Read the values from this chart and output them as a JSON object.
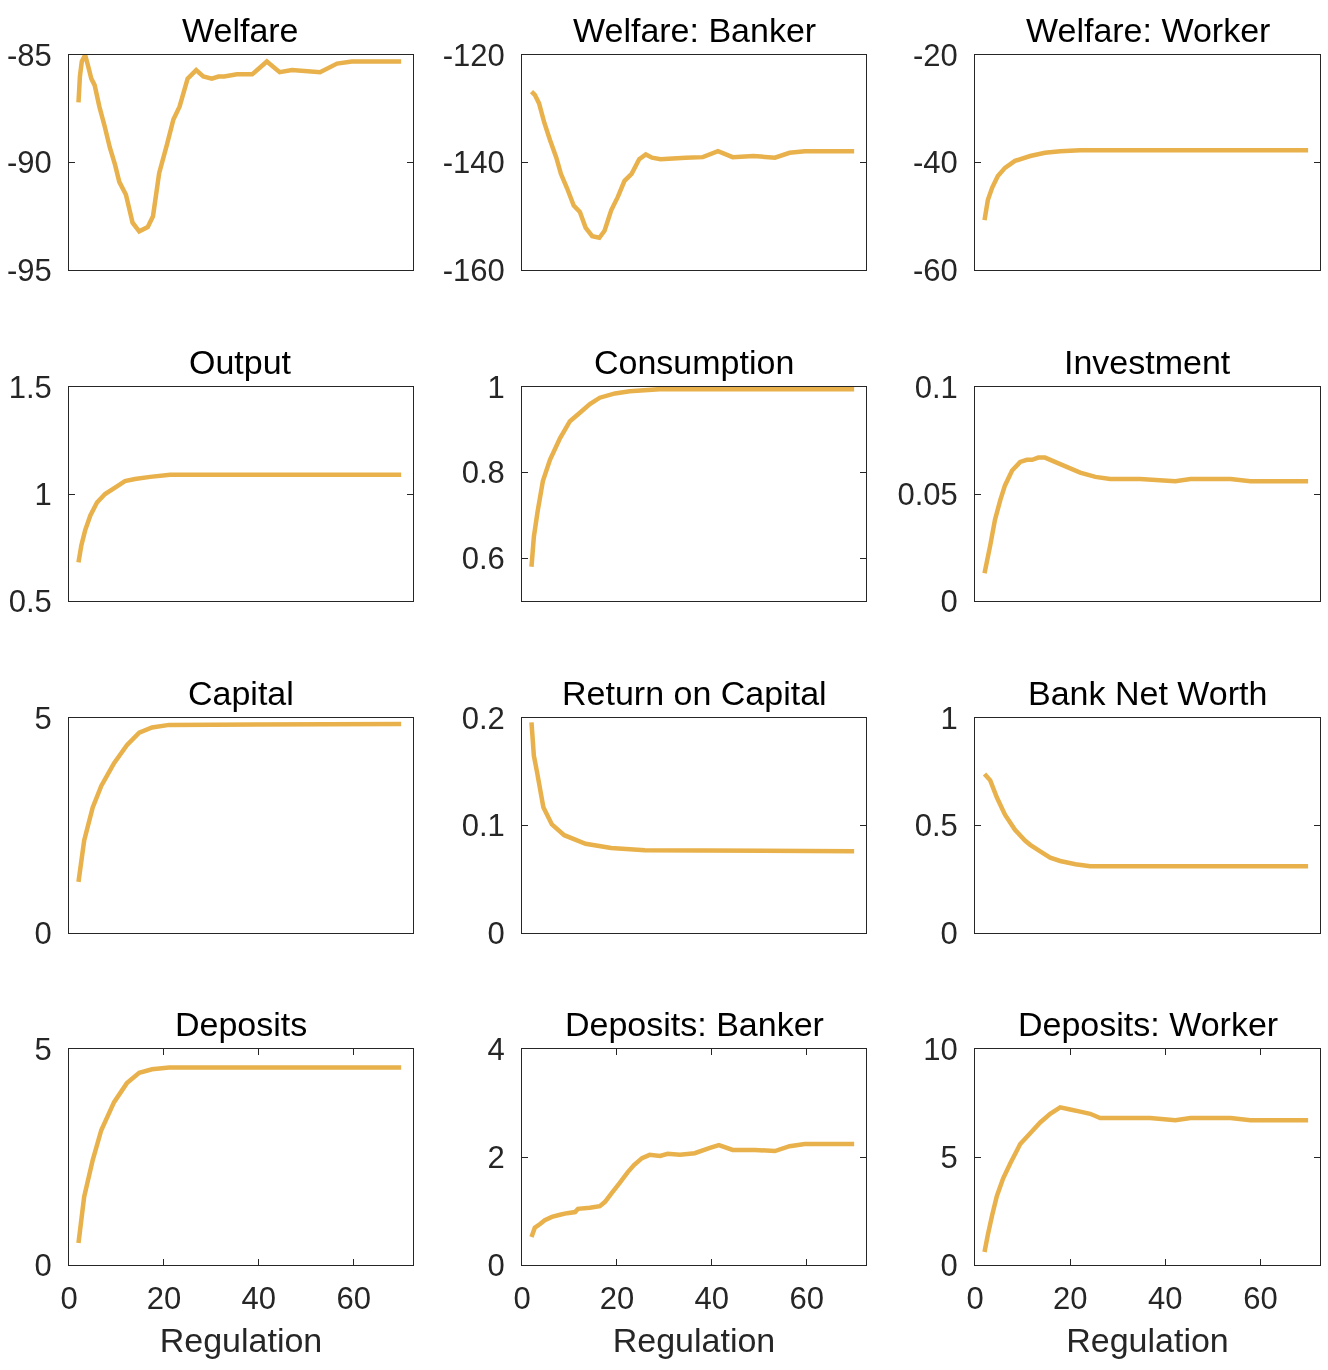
{
  "chart_data": [
    {
      "type": "line",
      "title": "Welfare",
      "x": [
        2,
        2.3,
        2.7,
        3.4,
        3.9,
        4.7,
        5.4,
        6.4,
        7.5,
        8.6,
        9.7,
        10.6,
        12,
        13.4,
        14.8,
        16.6,
        17.7,
        19,
        20.6,
        22,
        23.3,
        25,
        26.8,
        28.3,
        30.1,
        31.5,
        32.7,
        35.4,
        38.6,
        41.7,
        44.4,
        47,
        52.9,
        56.5,
        59.6,
        70
      ],
      "values": [
        -87.2,
        -86.0,
        -85.3,
        -85.0,
        -85.4,
        -86.1,
        -86.4,
        -87.4,
        -88.3,
        -89.3,
        -90.1,
        -90.9,
        -91.5,
        -92.8,
        -93.2,
        -93.0,
        -92.5,
        -90.5,
        -89.2,
        -88.0,
        -87.4,
        -86.1,
        -85.7,
        -86.0,
        -86.1,
        -86.0,
        -86.0,
        -85.9,
        -85.9,
        -85.3,
        -85.8,
        -85.7,
        -85.8,
        -85.4,
        -85.3,
        -85.3
      ],
      "color": "#e8b14b",
      "xlim": [
        0,
        72.5
      ],
      "ylim": [
        -95,
        -85
      ],
      "yticks": [
        -95,
        -90,
        -85
      ],
      "tick_labels": "y"
    },
    {
      "type": "line",
      "title": "Welfare: Banker",
      "x": [
        2,
        2.7,
        3.6,
        4.7,
        5.9,
        7.2,
        8.2,
        9.5,
        10.9,
        12.2,
        13.4,
        14.8,
        16.3,
        17.4,
        18.8,
        20.2,
        21.6,
        23.1,
        24.7,
        26.1,
        27.4,
        29.2,
        30.9,
        34.5,
        38.1,
        41.3,
        44.4,
        48.8,
        53.3,
        56.4,
        59.6,
        70
      ],
      "values": [
        -126.8,
        -127.4,
        -129.0,
        -132.6,
        -135.8,
        -139.0,
        -142.1,
        -144.8,
        -148.0,
        -149.2,
        -152.1,
        -153.7,
        -154.0,
        -152.7,
        -148.9,
        -146.4,
        -143.4,
        -142.1,
        -139.4,
        -138.5,
        -139.1,
        -139.4,
        -139.3,
        -139.1,
        -139.0,
        -137.9,
        -139.0,
        -138.8,
        -139.1,
        -138.2,
        -137.9,
        -137.9
      ],
      "color": "#e8b14b",
      "xlim": [
        0,
        72.5
      ],
      "ylim": [
        -160,
        -120
      ],
      "yticks": [
        -160,
        -140,
        -120
      ],
      "tick_labels": "y"
    },
    {
      "type": "line",
      "title": "Welfare: Worker",
      "x": [
        2,
        2.7,
        3.6,
        4.8,
        6.3,
        8.4,
        11.6,
        14.7,
        17.9,
        22.1,
        70
      ],
      "values": [
        -50.7,
        -47.0,
        -44.7,
        -42.5,
        -41.0,
        -39.7,
        -38.8,
        -38.2,
        -37.9,
        -37.7,
        -37.7
      ],
      "color": "#e8b14b",
      "xlim": [
        0,
        72.5
      ],
      "ylim": [
        -60,
        -20
      ],
      "yticks": [
        -60,
        -40,
        -20
      ],
      "tick_labels": "y"
    },
    {
      "type": "line",
      "title": "Output",
      "x": [
        2,
        2.6,
        3.4,
        4.5,
        5.9,
        7.6,
        9.7,
        11.8,
        13.9,
        17.1,
        21.3,
        27.6,
        70
      ],
      "values": [
        0.68,
        0.76,
        0.83,
        0.9,
        0.96,
        1.0,
        1.03,
        1.06,
        1.07,
        1.08,
        1.09,
        1.09,
        1.09
      ],
      "color": "#e8b14b",
      "xlim": [
        0,
        72.5
      ],
      "ylim": [
        0.5,
        1.5
      ],
      "yticks": [
        0.5,
        1,
        1.5
      ],
      "tick_labels": "y"
    },
    {
      "type": "line",
      "title": "Consumption",
      "x": [
        2,
        2.5,
        3.3,
        4.4,
        5.9,
        8,
        10.1,
        12.2,
        14.3,
        16.4,
        19.6,
        22.7,
        29,
        70
      ],
      "values": [
        0.58,
        0.65,
        0.71,
        0.78,
        0.83,
        0.88,
        0.92,
        0.94,
        0.96,
        0.975,
        0.985,
        0.99,
        0.995,
        0.995
      ],
      "color": "#e8b14b",
      "xlim": [
        0,
        72.5
      ],
      "ylim": [
        0.5,
        1
      ],
      "yticks": [
        0.6,
        0.8,
        1
      ],
      "tick_labels": "y"
    },
    {
      "type": "line",
      "title": "Investment",
      "x": [
        2,
        3.2,
        4.2,
        5.3,
        6.3,
        7.8,
        9.5,
        10.9,
        12,
        13.3,
        14.7,
        16.8,
        18.9,
        22.1,
        25.3,
        28.4,
        34.7,
        42.1,
        45.3,
        53.7,
        57.9,
        70
      ],
      "values": [
        0.013,
        0.026,
        0.038,
        0.047,
        0.054,
        0.061,
        0.065,
        0.066,
        0.066,
        0.067,
        0.067,
        0.065,
        0.063,
        0.06,
        0.058,
        0.057,
        0.057,
        0.056,
        0.057,
        0.057,
        0.056,
        0.056
      ],
      "color": "#e8b14b",
      "xlim": [
        0,
        72.5
      ],
      "ylim": [
        0,
        0.1
      ],
      "yticks": [
        0,
        0.05,
        0.1
      ],
      "tick_labels": "y"
    },
    {
      "type": "line",
      "title": "Capital",
      "x": [
        2,
        3.2,
        5,
        6.8,
        9.5,
        12.2,
        14.8,
        17.5,
        21.1,
        70
      ],
      "values": [
        1.19,
        2.15,
        2.92,
        3.42,
        3.95,
        4.37,
        4.66,
        4.78,
        4.84,
        4.86
      ],
      "color": "#e8b14b",
      "xlim": [
        0,
        72.5
      ],
      "ylim": [
        0,
        5
      ],
      "yticks": [
        0,
        5
      ],
      "tick_labels": "y"
    },
    {
      "type": "line",
      "title": "Return on Capital",
      "x": [
        2,
        2.5,
        3.2,
        4.5,
        6.3,
        8.9,
        13.4,
        18.8,
        25.9,
        70
      ],
      "values": [
        0.196,
        0.165,
        0.149,
        0.117,
        0.101,
        0.091,
        0.083,
        0.079,
        0.077,
        0.076
      ],
      "color": "#e8b14b",
      "xlim": [
        0,
        72.5
      ],
      "ylim": [
        0,
        0.2
      ],
      "yticks": [
        0,
        0.1,
        0.2
      ],
      "tick_labels": "y"
    },
    {
      "type": "line",
      "title": "Bank Net Worth",
      "x": [
        2,
        3.2,
        4.6,
        6.3,
        8.4,
        10.5,
        11.6,
        13.7,
        15.8,
        17.9,
        21.1,
        24.2,
        30.5,
        70
      ],
      "values": [
        0.74,
        0.71,
        0.63,
        0.55,
        0.48,
        0.43,
        0.41,
        0.38,
        0.35,
        0.335,
        0.32,
        0.31,
        0.31,
        0.31
      ],
      "color": "#e8b14b",
      "xlim": [
        0,
        72.5
      ],
      "ylim": [
        0,
        1
      ],
      "yticks": [
        0,
        0.5,
        1
      ],
      "tick_labels": "y"
    },
    {
      "type": "line",
      "title": "Deposits",
      "xlabel": "Regulation",
      "x": [
        2,
        3.2,
        5,
        6.8,
        9.5,
        12.2,
        14.8,
        17.5,
        21.1,
        70
      ],
      "values": [
        0.51,
        1.58,
        2.43,
        3.12,
        3.77,
        4.21,
        4.45,
        4.53,
        4.57,
        4.57
      ],
      "color": "#e8b14b",
      "xlim": [
        0,
        72.5
      ],
      "xticks": [
        0,
        20,
        40,
        60
      ],
      "ylim": [
        0,
        5
      ],
      "yticks": [
        0,
        5
      ]
    },
    {
      "type": "line",
      "title": "Deposits: Banker",
      "xlabel": "Regulation",
      "x": [
        2,
        2.7,
        3.8,
        4.8,
        6.3,
        8,
        9.5,
        11.2,
        11.8,
        14.3,
        16.4,
        17.5,
        18.9,
        20.6,
        22.3,
        23.6,
        25.3,
        26.9,
        29.1,
        30.7,
        33.3,
        36.4,
        39.6,
        41.5,
        44.4,
        49.1,
        53.3,
        56.4,
        59.6,
        70
      ],
      "values": [
        0.52,
        0.69,
        0.76,
        0.83,
        0.89,
        0.93,
        0.96,
        0.98,
        1.04,
        1.06,
        1.09,
        1.17,
        1.33,
        1.52,
        1.72,
        1.85,
        1.98,
        2.04,
        2.02,
        2.06,
        2.04,
        2.07,
        2.17,
        2.22,
        2.13,
        2.13,
        2.11,
        2.2,
        2.24,
        2.24
      ],
      "color": "#e8b14b",
      "xlim": [
        0,
        72.5
      ],
      "xticks": [
        0,
        20,
        40,
        60
      ],
      "ylim": [
        0,
        4
      ],
      "yticks": [
        0,
        2,
        4
      ]
    },
    {
      "type": "line",
      "title": "Deposits: Worker",
      "xlabel": "Regulation",
      "x": [
        2,
        2.7,
        3.6,
        4.6,
        5.9,
        7.4,
        9.5,
        11.6,
        13.7,
        15.8,
        17.9,
        20,
        22.1,
        24.2,
        26.3,
        29.5,
        32.6,
        36.8,
        42.1,
        45.3,
        53.7,
        57.9,
        70
      ],
      "values": [
        0.6,
        1.4,
        2.3,
        3.2,
        4.0,
        4.7,
        5.6,
        6.1,
        6.6,
        7.0,
        7.3,
        7.2,
        7.1,
        7.0,
        6.8,
        6.8,
        6.8,
        6.8,
        6.7,
        6.8,
        6.8,
        6.7,
        6.7
      ],
      "color": "#e8b14b",
      "xlim": [
        0,
        72.5
      ],
      "xticks": [
        0,
        20,
        40,
        60
      ],
      "ylim": [
        0,
        10
      ],
      "yticks": [
        0,
        5,
        10
      ]
    }
  ]
}
